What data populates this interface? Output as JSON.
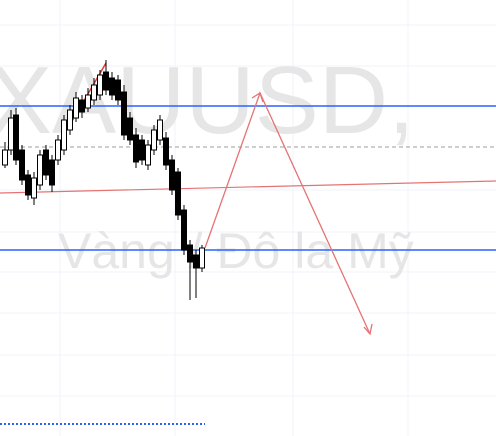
{
  "watermark": {
    "symbol": "XAUUSD,",
    "name": "Vàng / Đô la Mỹ"
  }
}
